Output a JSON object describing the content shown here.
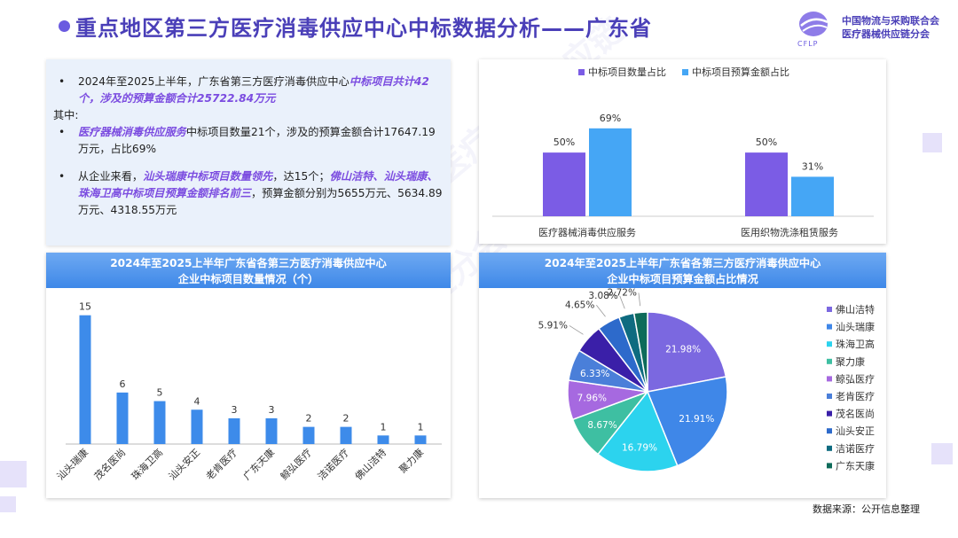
{
  "header": {
    "title": "重点地区第三方医疗消毒供应中心中标数据分析——广东省",
    "logo_line1": "中国物流与采购联合会",
    "logo_line2": "医疗器械供应链分会",
    "logo_abbr": "CFLP"
  },
  "summary": {
    "b1_plain": "2024年至2025上半年，广东省第三方医疗消毒供应中心",
    "b1_hl": "中标项目共计42个，涉及的预算金额合计25722.84万元",
    "among": "其中:",
    "b2_hl": "医疗器械消毒供应服务",
    "b2_plain": "中标项目数量21个，涉及的预算金额合计17647.19万元，占比69%",
    "b3_plain1": "从企业来看，",
    "b3_hl1": "汕头瑞康中标项目数量领先",
    "b3_plain2": "，达15个；",
    "b3_hl2": "佛山洁特、汕头瑞康、珠海卫高中标项目预算金额排名前三",
    "b3_plain3": "，预算金额分别为5655万元、5634.89万元、4318.55万元"
  },
  "source": "数据来源：公开信息整理",
  "colors": {
    "purple": "#7B5CE5",
    "blue": "#45A6F5",
    "bar": "#3D8BEA"
  },
  "chart_data": [
    {
      "type": "bar",
      "categories": [
        "医疗器械消毒供应服务",
        "医用织物洗涤租赁服务"
      ],
      "series": [
        {
          "name": "中标项目数量占比",
          "values": [
            50,
            50
          ],
          "labels": [
            "50%",
            "50%"
          ]
        },
        {
          "name": "中标项目预算金额占比",
          "values": [
            69,
            31
          ],
          "labels": [
            "69%",
            "31%"
          ]
        }
      ],
      "legend": "top-left",
      "ylim": [
        0,
        80
      ]
    },
    {
      "type": "bar",
      "title": "2024年至2025上半年广东省各第三方医疗消毒供应中心",
      "subtitle": "企业中标项目数量情况（个）",
      "categories": [
        "汕头瑞康",
        "茂名医尚",
        "珠海卫高",
        "汕头安正",
        "老肯医疗",
        "广东天康",
        "鲸弘医疗",
        "洁诺医疗",
        "佛山洁特",
        "聚力康"
      ],
      "values": [
        15,
        6,
        5,
        4,
        3,
        3,
        2,
        2,
        1,
        1
      ],
      "ylim": [
        0,
        16
      ]
    },
    {
      "type": "pie",
      "title": "2024年至2025上半年广东省各第三方医疗消毒供应中心",
      "subtitle": "企业中标项目预算金额占比情况",
      "labels": [
        "佛山洁特",
        "汕头瑞康",
        "珠海卫高",
        "聚力康",
        "鲸弘医疗",
        "老肯医疗",
        "茂名医尚",
        "汕头安正",
        "洁诺医疗",
        "广东天康"
      ],
      "values": [
        21.98,
        21.91,
        16.79,
        8.67,
        7.96,
        6.33,
        5.91,
        4.65,
        3.08,
        2.72
      ],
      "value_labels": [
        "21.98%",
        "21.91%",
        "16.79%",
        "8.67%",
        "7.96%",
        "6.33%",
        "5.91%",
        "4.65%",
        "3.08%",
        "2.72%"
      ],
      "colors": [
        "#7B68E0",
        "#3F87E8",
        "#2CD3EE",
        "#3EBFA2",
        "#A669E0",
        "#4A7FD9",
        "#3A1FA8",
        "#2D6ACB",
        "#0E6B80",
        "#0E6B5A"
      ],
      "legend": "right"
    }
  ]
}
